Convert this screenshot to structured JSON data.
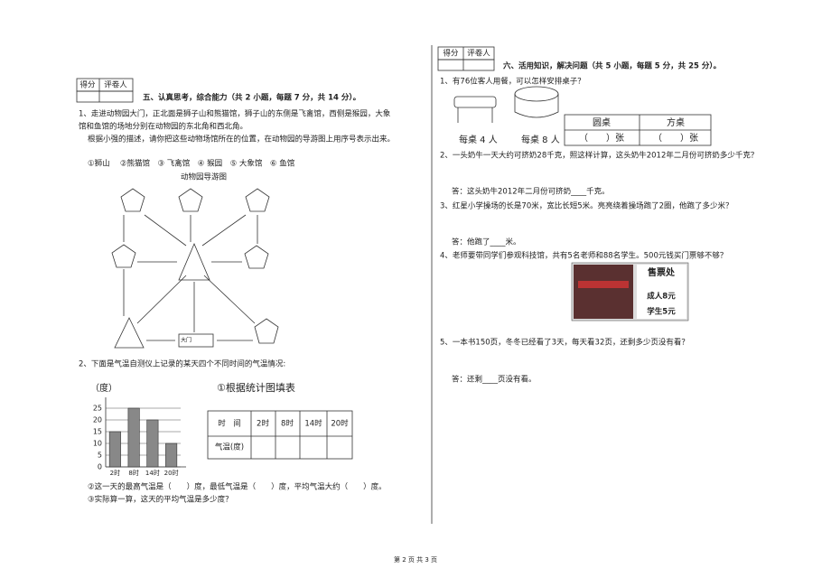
{
  "left": {
    "score_box": [
      "得分",
      "评卷人"
    ],
    "section": "五、认真思考，综合能力（共 2 小题，每题 7 分，共 14 分）。",
    "q1": {
      "text": [
        "1、走进动物园大门，正北面是狮子山和熊猫馆，狮子山的东侧是飞禽馆，西侧是猴园，大象",
        "馆和鱼馆的场地分别在动物园的东北角和西北角。",
        "根据小强的描述，请你把这些动物场馆所在的位置，在动物园的导游图上用序号表示出来。"
      ],
      "options": "①狮山　 ②熊猫馆　③ 飞禽馆　④ 猴园　⑤ 大象馆　⑥ 鱼馆",
      "map_title": "动物园导游图",
      "gate": "大门"
    },
    "q2": {
      "text": "2、下面是气温自测仪上记录的某天四个不同时间的气温情况:",
      "chart": {
        "type": "bar",
        "y_label": "（度）",
        "categories": [
          "2时",
          "8时",
          "14时",
          "20时"
        ],
        "values": [
          15,
          25,
          20,
          10
        ],
        "color": "#888888",
        "ylim": [
          0,
          25
        ],
        "yticks": [
          0,
          5,
          10,
          15,
          20,
          25
        ],
        "grid": true
      },
      "table_title": "①根据统计图填表",
      "table": {
        "header": [
          "时　间",
          "2时",
          "8时",
          "14时",
          "20时"
        ],
        "row_label": "气温(度)"
      },
      "sub": [
        "②这一天的最高气温是（　　）度，最低气温是（　　）度，平均气温大约（　　）度。",
        "③实际算一算，这天的平均气温是多少度？"
      ]
    }
  },
  "right": {
    "score_box": [
      "得分",
      "评卷人"
    ],
    "section": "六、活用知识，解决问题（共 5 小题，每题 5 分，共 25 分）。",
    "q1": {
      "text": "1、有76位客人用餐，可以怎样安排桌子？",
      "labels": [
        "每桌 4 人",
        "每桌 8 人"
      ],
      "header": [
        "圆桌",
        "方桌"
      ],
      "row": [
        "（　　）张",
        "（　　）张"
      ]
    },
    "q2": {
      "text": "2、一头奶牛一天大约可挤奶28千克，照这样计算，这头奶牛2012年二月份可挤奶多少千克？",
      "answer": "答：这头奶牛2012年二月份可挤奶____千克。"
    },
    "q3": {
      "text": "3、红星小学操场的长是70米，宽比长短5米。亮亮绕着操场跑了2圈，他跑了多少米？",
      "answer": "答：他跑了____米。"
    },
    "q4": {
      "text": "4、老师要带同学们参观科技馆，共有5名老师和88名学生。500元钱买门票够不够？",
      "sign": [
        "售票处",
        "成人8元",
        "学生5元"
      ]
    },
    "q5": {
      "text": "5、一本书150页，冬冬已经看了3天，每天看32页，还剩多少页没有看？",
      "answer": "答：还剩____页没有看。"
    }
  },
  "footer": "第 2 页 共 3 页"
}
